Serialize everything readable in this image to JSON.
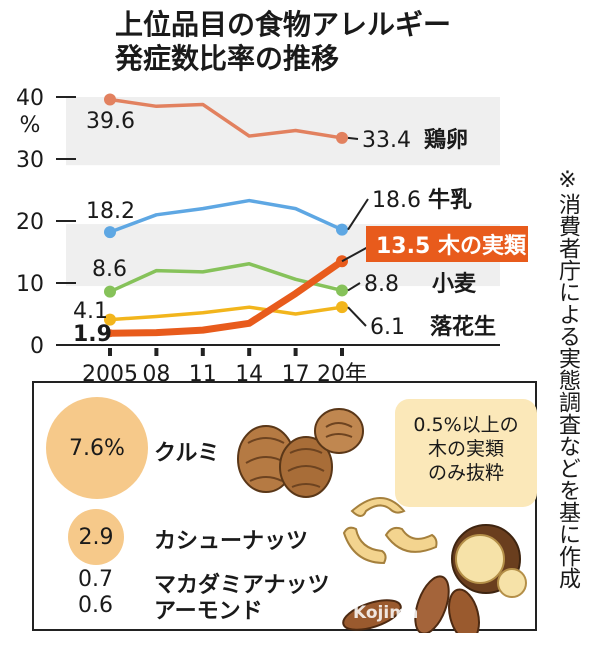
{
  "title": {
    "line1": "上位品目の食物アレルギー",
    "line2": "発症数比率の推移"
  },
  "side_note": "※消費者庁による実態調査などを基に作成",
  "chart_data": {
    "type": "line",
    "ylabel": "%",
    "ylim": [
      0,
      40
    ],
    "y_ticks": [
      0,
      10,
      20,
      30,
      40
    ],
    "x": [
      2005,
      2008,
      2011,
      2014,
      2017,
      2020
    ],
    "x_tick_labels": [
      "2005",
      "08",
      "11",
      "14",
      "17",
      "20年"
    ],
    "series": [
      {
        "name": "鶏卵",
        "values": [
          39.6,
          38.5,
          38.8,
          33.7,
          34.6,
          33.4
        ],
        "start_label": "39.6",
        "end_label": "33.4",
        "color": "#e2815f"
      },
      {
        "name": "牛乳",
        "values": [
          18.2,
          21.0,
          22.0,
          23.3,
          22.0,
          18.6
        ],
        "start_label": "18.2",
        "end_label": "18.6",
        "color": "#5ea7e3"
      },
      {
        "name": "小麦",
        "values": [
          8.6,
          12.0,
          11.8,
          13.1,
          10.6,
          8.8
        ],
        "start_label": "8.6",
        "end_label": "8.8",
        "color": "#86c25a"
      },
      {
        "name": "落花生",
        "values": [
          4.1,
          4.6,
          5.2,
          6.1,
          5.0,
          6.1
        ],
        "start_label": "4.1",
        "end_label": "6.1",
        "color": "#f2b51c"
      },
      {
        "name": "木の実類",
        "values": [
          1.9,
          2.0,
          2.4,
          3.5,
          8.3,
          13.5
        ],
        "start_label": "1.9",
        "end_label": "13.5",
        "color": "#e85b1c",
        "highlight": true
      }
    ],
    "shaded_bands": [
      [
        29,
        40
      ],
      [
        9.5,
        19.5
      ]
    ]
  },
  "nuts": {
    "note": [
      "0.5%以上の",
      "木の実類",
      "のみ抜粋"
    ],
    "items": [
      {
        "name": "クルミ",
        "value": "7.6%"
      },
      {
        "name": "カシューナッツ",
        "value": "2.9"
      },
      {
        "name": "マカダミアナッツ",
        "value": "0.7"
      },
      {
        "name": "アーモンド",
        "value": "0.6"
      }
    ]
  },
  "colors": {
    "text": "#1a1a1a",
    "band": "#efefef",
    "nut_circle": "#f6c98a",
    "note_box": "#fbe8b9"
  },
  "credit": "Kojima"
}
